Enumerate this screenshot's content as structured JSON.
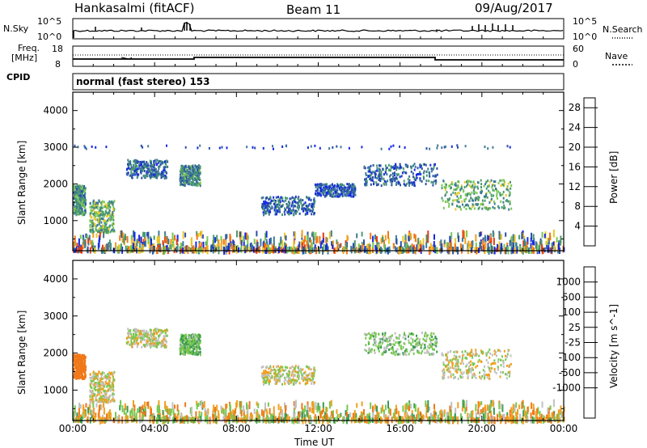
{
  "header": {
    "radar": "Hankasalmi (fitACF)",
    "beam": "Beam 11",
    "date": "09/Aug/2017"
  },
  "nsky_panel": {
    "left_label": "N.Sky",
    "left_ticks": [
      "10^5",
      "10^0"
    ],
    "right_label": "N.Search",
    "right_ticks": [
      "10^5",
      "10^0"
    ]
  },
  "freq_panel": {
    "left_label_1": "Freq.",
    "left_label_2": "[MHz]",
    "left_ticks": [
      "18",
      "8"
    ],
    "right_label": "Nave",
    "right_ticks": [
      "60",
      "0"
    ]
  },
  "cpid": {
    "label": "CPID",
    "value": "normal (fast stereo) 153"
  },
  "colors": {
    "power_scale": [
      "#1428e6",
      "#2a50a8",
      "#3f7a96",
      "#4a9a6e",
      "#78c850",
      "#e8c828",
      "#f0a020",
      "#f07818",
      "#e63c14",
      "#e60000"
    ],
    "velocity_scale": [
      "#e61414",
      "#f03c14",
      "#f07818",
      "#f0a020",
      "#c0c0c0",
      "#c0c0c0",
      "#78c850",
      "#3a9a52",
      "#2a50a8",
      "#2828d8"
    ]
  },
  "chart_data": [
    {
      "type": "heatmap",
      "name": "power-panel",
      "xlabel": "",
      "ylabel": "Slant Range [km]",
      "xlim": [
        0,
        24
      ],
      "ylim": [
        180,
        4500
      ],
      "yticks": [
        1000,
        2000,
        3000,
        4000
      ],
      "xticks": [
        0,
        4,
        8,
        12,
        16,
        20,
        24
      ],
      "colorbar": {
        "label": "Power [dB]",
        "ticks": [
          "4",
          "8",
          "12",
          "16",
          "20",
          "24",
          "28"
        ],
        "range": [
          0,
          30
        ]
      },
      "echo_regions": [
        {
          "t0": 0.0,
          "t1": 0.6,
          "r0": 1150,
          "r1": 1950,
          "value": 10
        },
        {
          "t0": 0.8,
          "t1": 2.0,
          "r0": 650,
          "r1": 1550,
          "value": 12
        },
        {
          "t0": 2.6,
          "t1": 4.6,
          "r0": 2150,
          "r1": 2650,
          "value": 6
        },
        {
          "t0": 5.2,
          "t1": 6.2,
          "r0": 1950,
          "r1": 2500,
          "value": 8
        },
        {
          "t0": 9.2,
          "t1": 11.8,
          "r0": 1150,
          "r1": 1650,
          "value": 6
        },
        {
          "t0": 11.8,
          "t1": 13.8,
          "r0": 1650,
          "r1": 2000,
          "value": 5
        },
        {
          "t0": 14.2,
          "t1": 17.8,
          "r0": 1950,
          "r1": 2550,
          "value": 6
        },
        {
          "t0": 18.0,
          "t1": 21.4,
          "r0": 1300,
          "r1": 2100,
          "value": 11
        },
        {
          "t0": 0.0,
          "t1": 24.0,
          "r0": 180,
          "r1": 650,
          "value": 14
        },
        {
          "t0": 0.0,
          "t1": 22.0,
          "r0": 2950,
          "r1": 3050,
          "value": 4
        }
      ]
    },
    {
      "type": "heatmap",
      "name": "velocity-panel",
      "xlabel": "Time UT",
      "ylabel": "Slant Range [km]",
      "xlim": [
        0,
        24
      ],
      "ylim": [
        180,
        4500
      ],
      "yticks": [
        1000,
        2000,
        3000,
        4000
      ],
      "xticks": [
        0,
        4,
        8,
        12,
        16,
        20,
        24
      ],
      "xticklabels": [
        "00:00",
        "04:00",
        "08:00",
        "12:00",
        "16:00",
        "20:00",
        "00:00"
      ],
      "colorbar": {
        "label": "Velocity [m s^-1]",
        "ticks": [
          "1000",
          "500",
          "100",
          "25",
          "-25",
          "-100",
          "-500",
          "-1000"
        ]
      },
      "echo_regions": [
        {
          "t0": 0.0,
          "t1": 0.6,
          "r0": 1300,
          "r1": 1950,
          "value": -300
        },
        {
          "t0": 0.8,
          "t1": 2.0,
          "r0": 650,
          "r1": 1500,
          "value": 0
        },
        {
          "t0": 2.6,
          "t1": 4.6,
          "r0": 2150,
          "r1": 2650,
          "value": 0
        },
        {
          "t0": 5.2,
          "t1": 6.2,
          "r0": 1950,
          "r1": 2500,
          "value": 80
        },
        {
          "t0": 9.2,
          "t1": 11.8,
          "r0": 1150,
          "r1": 1650,
          "value": 0
        },
        {
          "t0": 14.2,
          "t1": 17.8,
          "r0": 1950,
          "r1": 2550,
          "value": 60
        },
        {
          "t0": 18.0,
          "t1": 21.4,
          "r0": 1300,
          "r1": 2100,
          "value": 0
        },
        {
          "t0": 0.0,
          "t1": 24.0,
          "r0": 180,
          "r1": 650,
          "value": -60
        }
      ]
    }
  ]
}
